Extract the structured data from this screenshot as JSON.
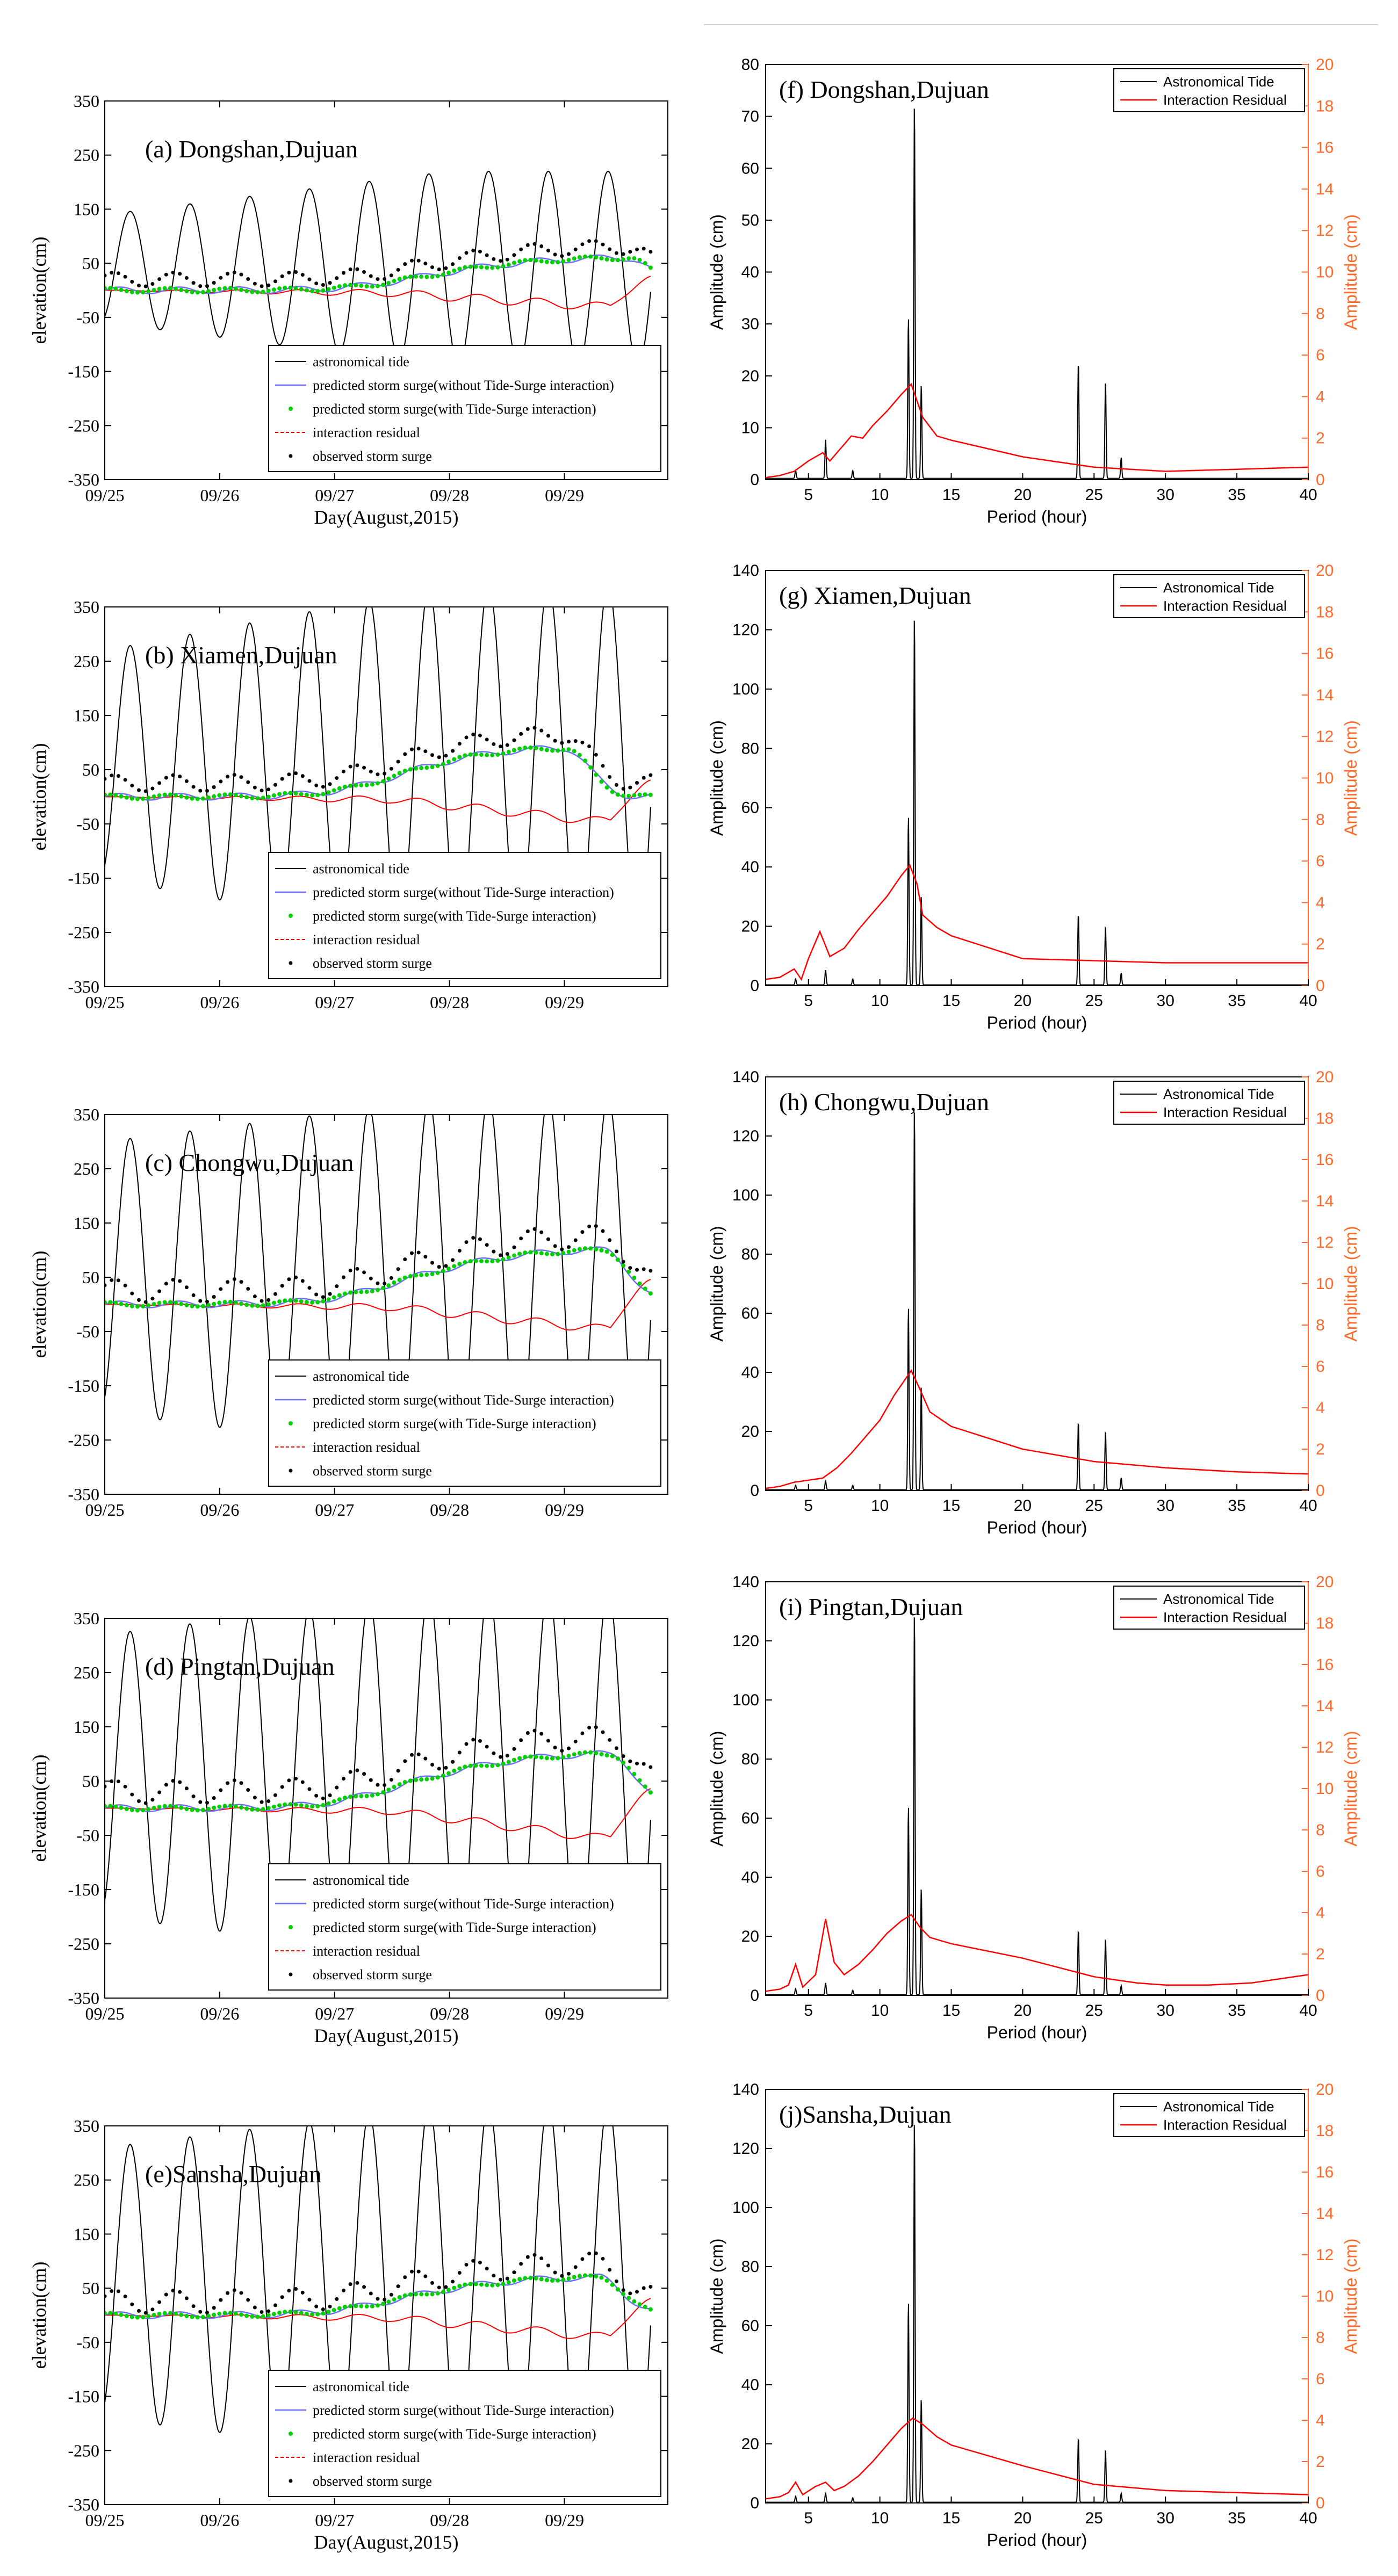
{
  "colors": {
    "tide": "#000000",
    "residual_line": "#ff0000",
    "right_axis": "#ff6a2a",
    "predicted_without": "#6f6fff",
    "predicted_with": "#00d000",
    "observed": "#000000",
    "top_rule": "#cccccc"
  },
  "chart_data": [
    {
      "panel": "a",
      "type": "line",
      "title": "(a) Dongshan,Dujuan",
      "xlabel": "Day(August,2015)",
      "ylabel": "elevation(cm)",
      "xticks": [
        "09/25",
        "09/26",
        "09/27",
        "09/28",
        "09/29"
      ],
      "xlim": [
        0,
        4.9
      ],
      "ylim": [
        -350,
        350
      ],
      "yticks": [
        -350,
        -250,
        -150,
        -50,
        50,
        150,
        250,
        350
      ],
      "legend": [
        "astronomical tide",
        "predicted storm surge(without Tide-Surge interaction)",
        "predicted storm surge(with Tide-Surge interaction)",
        "interaction residual",
        "observed storm surge"
      ],
      "tide": {
        "amp_start": 100,
        "amp_end": 180,
        "mean": 40,
        "period_days": 0.52,
        "phase_days": 0.22
      },
      "surge": {
        "base": 0,
        "rise_day": 2.5,
        "peak": 60,
        "peak_day": 4.55
      },
      "residual": {
        "min": -30,
        "end": 20
      },
      "observed": {
        "offset": 20,
        "wiggle": 10
      }
    },
    {
      "panel": "b",
      "type": "line",
      "title": "(b) Xiamen,Dujuan",
      "xlabel": "",
      "ylabel": "elevation(cm)",
      "xticks": [
        "09/25",
        "09/26",
        "09/27",
        "09/28",
        "09/29"
      ],
      "xlim": [
        0,
        4.9
      ],
      "ylim": [
        -350,
        350
      ],
      "yticks": [
        -350,
        -250,
        -150,
        -50,
        50,
        150,
        250,
        350
      ],
      "legend": [
        "astronomical tide",
        "predicted storm surge(without Tide-Surge interaction)",
        "predicted storm surge(with Tide-Surge interaction)",
        "interaction residual",
        "observed storm surge"
      ],
      "tide": {
        "amp_start": 210,
        "amp_end": 330,
        "mean": 60,
        "period_days": 0.52,
        "phase_days": 0.22
      },
      "surge": {
        "base": 0,
        "rise_day": 2.4,
        "peak": 90,
        "peak_day": 4.0
      },
      "residual": {
        "min": -45,
        "end": 25
      },
      "observed": {
        "offset": 25,
        "wiggle": 12
      }
    },
    {
      "panel": "c",
      "type": "line",
      "title": "(c) Chongwu,Dujuan",
      "xlabel": "",
      "ylabel": "elevation(cm)",
      "xticks": [
        "09/25",
        "09/26",
        "09/27",
        "09/28",
        "09/29"
      ],
      "xlim": [
        0,
        4.9
      ],
      "ylim": [
        -350,
        350
      ],
      "yticks": [
        -350,
        -250,
        -150,
        -50,
        50,
        150,
        250,
        350
      ],
      "legend": [
        "astronomical tide",
        "predicted storm surge(without Tide-Surge interaction)",
        "predicted storm surge(with Tide-Surge interaction)",
        "interaction residual",
        "observed storm surge"
      ],
      "tide": {
        "amp_start": 250,
        "amp_end": 330,
        "mean": 50,
        "period_days": 0.52,
        "phase_days": 0.22
      },
      "surge": {
        "base": 0,
        "rise_day": 2.3,
        "peak": 100,
        "peak_day": 4.35
      },
      "residual": {
        "min": -45,
        "end": 40
      },
      "observed": {
        "offset": 25,
        "wiggle": 18
      }
    },
    {
      "panel": "d",
      "type": "line",
      "title": "(d) Pingtan,Dujuan",
      "xlabel": "Day(August,2015)",
      "ylabel": "elevation(cm)",
      "xticks": [
        "09/25",
        "09/26",
        "09/27",
        "09/28",
        "09/29"
      ],
      "xlim": [
        0,
        4.9
      ],
      "ylim": [
        -350,
        350
      ],
      "yticks": [
        -350,
        -250,
        -150,
        -50,
        50,
        150,
        250,
        350
      ],
      "legend": [
        "astronomical tide",
        "predicted storm surge(without Tide-Surge interaction)",
        "predicted storm surge(with Tide-Surge interaction)",
        "interaction residual",
        "observed storm surge"
      ],
      "tide": {
        "amp_start": 260,
        "amp_end": 340,
        "mean": 60,
        "period_days": 0.52,
        "phase_days": 0.22
      },
      "surge": {
        "base": 0,
        "rise_day": 2.3,
        "peak": 100,
        "peak_day": 4.4
      },
      "residual": {
        "min": -55,
        "end": 30
      },
      "observed": {
        "offset": 30,
        "wiggle": 18
      }
    },
    {
      "panel": "e",
      "type": "line",
      "title": "(e)Sansha,Dujuan",
      "xlabel": "Day(August,2015)",
      "ylabel": "elevation(cm)",
      "xticks": [
        "09/25",
        "09/26",
        "09/27",
        "09/28",
        "09/29"
      ],
      "xlim": [
        0,
        4.9
      ],
      "ylim": [
        -350,
        350
      ],
      "yticks": [
        -350,
        -250,
        -150,
        -50,
        50,
        150,
        250,
        350
      ],
      "legend": [
        "astronomical tide",
        "predicted storm surge(without Tide-Surge interaction)",
        "predicted storm surge(with Tide-Surge interaction)",
        "interaction residual",
        "observed storm surge"
      ],
      "tide": {
        "amp_start": 250,
        "amp_end": 330,
        "mean": 60,
        "period_days": 0.52,
        "phase_days": 0.22
      },
      "surge": {
        "base": 0,
        "rise_day": 2.3,
        "peak": 70,
        "peak_day": 4.3
      },
      "residual": {
        "min": -40,
        "end": 25
      },
      "observed": {
        "offset": 25,
        "wiggle": 18
      }
    },
    {
      "panel": "f",
      "type": "line",
      "title": "(f) Dongshan,Dujuan",
      "xlabel": "Period (hour)",
      "ylabel_left": "Amplitude (cm)",
      "ylabel_right": "Amplitude (cm)",
      "xlim": [
        2,
        40
      ],
      "xticks": [
        5,
        10,
        15,
        20,
        25,
        30,
        35,
        40
      ],
      "ylim_left": [
        0,
        80
      ],
      "yticks_left": [
        0,
        10,
        20,
        30,
        40,
        50,
        60,
        70,
        80
      ],
      "ylim_right": [
        0,
        20
      ],
      "yticks_right": [
        0,
        2,
        4,
        6,
        8,
        10,
        12,
        14,
        16,
        18,
        20
      ],
      "legend": [
        "Astronomical Tide",
        "Interaction Residual"
      ],
      "tide_peaks": [
        [
          4.1,
          1.5
        ],
        [
          6.2,
          7.5
        ],
        [
          8.1,
          1.5
        ],
        [
          12.0,
          31
        ],
        [
          12.42,
          72.5
        ],
        [
          12.9,
          18
        ],
        [
          23.9,
          22.5
        ],
        [
          25.8,
          19
        ],
        [
          26.9,
          4
        ]
      ],
      "residual_curve": [
        [
          2,
          0.1
        ],
        [
          3,
          0.2
        ],
        [
          4,
          0.4
        ],
        [
          5,
          0.9
        ],
        [
          6,
          1.3
        ],
        [
          6.5,
          0.9
        ],
        [
          7,
          1.3
        ],
        [
          8,
          2.1
        ],
        [
          8.8,
          2.0
        ],
        [
          9.5,
          2.6
        ],
        [
          10.5,
          3.3
        ],
        [
          11.5,
          4.1
        ],
        [
          12.2,
          4.6
        ],
        [
          12.6,
          3.8
        ],
        [
          13,
          3.0
        ],
        [
          14,
          2.1
        ],
        [
          15,
          1.9
        ],
        [
          20,
          1.1
        ],
        [
          25,
          0.6
        ],
        [
          30,
          0.4
        ],
        [
          35,
          0.5
        ],
        [
          40,
          0.6
        ]
      ]
    },
    {
      "panel": "g",
      "type": "line",
      "title": "(g) Xiamen,Dujuan",
      "xlabel": "Period (hour)",
      "ylabel_left": "Amplitude (cm)",
      "ylabel_right": "Amplitude (cm)",
      "xlim": [
        2,
        40
      ],
      "xticks": [
        5,
        10,
        15,
        20,
        25,
        30,
        35,
        40
      ],
      "ylim_left": [
        0,
        140
      ],
      "yticks_left": [
        0,
        20,
        40,
        60,
        80,
        100,
        120,
        140
      ],
      "ylim_right": [
        0,
        20
      ],
      "yticks_right": [
        0,
        2,
        4,
        6,
        8,
        10,
        12,
        14,
        16,
        18,
        20
      ],
      "legend": [
        "Astronomical Tide",
        "Interaction Residual"
      ],
      "tide_peaks": [
        [
          4.1,
          2
        ],
        [
          6.2,
          5
        ],
        [
          8.1,
          2
        ],
        [
          12.0,
          57
        ],
        [
          12.42,
          125
        ],
        [
          12.9,
          30
        ],
        [
          23.9,
          24
        ],
        [
          25.8,
          20
        ],
        [
          26.9,
          4
        ]
      ],
      "residual_curve": [
        [
          2,
          0.3
        ],
        [
          3,
          0.4
        ],
        [
          4,
          0.8
        ],
        [
          4.5,
          0.3
        ],
        [
          5,
          1.3
        ],
        [
          5.8,
          2.6
        ],
        [
          6.5,
          1.4
        ],
        [
          7.5,
          1.8
        ],
        [
          8.5,
          2.7
        ],
        [
          9.5,
          3.5
        ],
        [
          10.5,
          4.3
        ],
        [
          11.5,
          5.3
        ],
        [
          12.1,
          5.8
        ],
        [
          12.6,
          4.9
        ],
        [
          13,
          3.4
        ],
        [
          14,
          2.8
        ],
        [
          15,
          2.4
        ],
        [
          20,
          1.3
        ],
        [
          25,
          1.2
        ],
        [
          30,
          1.1
        ],
        [
          35,
          1.1
        ],
        [
          40,
          1.1
        ]
      ]
    },
    {
      "panel": "h",
      "type": "line",
      "title": "(h) Chongwu,Dujuan",
      "xlabel": "Period (hour)",
      "ylabel_left": "Amplitude (cm)",
      "ylabel_right": "Amplitude (cm)",
      "xlim": [
        2,
        40
      ],
      "xticks": [
        5,
        10,
        15,
        20,
        25,
        30,
        35,
        40
      ],
      "ylim_left": [
        0,
        140
      ],
      "yticks_left": [
        0,
        20,
        40,
        60,
        80,
        100,
        120,
        140
      ],
      "ylim_right": [
        0,
        20
      ],
      "yticks_right": [
        0,
        2,
        4,
        6,
        8,
        10,
        12,
        14,
        16,
        18,
        20
      ],
      "legend": [
        "Astronomical Tide",
        "Interaction Residual"
      ],
      "tide_peaks": [
        [
          4.1,
          1.5
        ],
        [
          6.2,
          3
        ],
        [
          8.1,
          1.5
        ],
        [
          12.0,
          62
        ],
        [
          12.42,
          130
        ],
        [
          12.9,
          35
        ],
        [
          23.9,
          23
        ],
        [
          25.8,
          20
        ],
        [
          26.9,
          4
        ]
      ],
      "residual_curve": [
        [
          2,
          0.1
        ],
        [
          3,
          0.2
        ],
        [
          4,
          0.4
        ],
        [
          5,
          0.5
        ],
        [
          6,
          0.6
        ],
        [
          7,
          1.1
        ],
        [
          8,
          1.8
        ],
        [
          9,
          2.6
        ],
        [
          10,
          3.4
        ],
        [
          11,
          4.6
        ],
        [
          12.2,
          5.8
        ],
        [
          12.8,
          4.9
        ],
        [
          13.5,
          3.8
        ],
        [
          15,
          3.1
        ],
        [
          20,
          2.0
        ],
        [
          25,
          1.4
        ],
        [
          30,
          1.1
        ],
        [
          35,
          0.9
        ],
        [
          40,
          0.8
        ]
      ]
    },
    {
      "panel": "i",
      "type": "line",
      "title": "(i) Pingtan,Dujuan",
      "xlabel": "Period (hour)",
      "ylabel_left": "Amplitude (cm)",
      "ylabel_right": "Amplitude (cm)",
      "xlim": [
        2,
        40
      ],
      "xticks": [
        5,
        10,
        15,
        20,
        25,
        30,
        35,
        40
      ],
      "ylim_left": [
        0,
        140
      ],
      "yticks_left": [
        0,
        20,
        40,
        60,
        80,
        100,
        120,
        140
      ],
      "ylim_right": [
        0,
        20
      ],
      "yticks_right": [
        0,
        2,
        4,
        6,
        8,
        10,
        12,
        14,
        16,
        18,
        20
      ],
      "legend": [
        "Astronomical Tide",
        "Interaction Residual"
      ],
      "tide_peaks": [
        [
          4.1,
          2
        ],
        [
          6.2,
          4
        ],
        [
          8.1,
          1.5
        ],
        [
          12.0,
          64
        ],
        [
          12.42,
          130
        ],
        [
          12.9,
          36
        ],
        [
          23.9,
          22
        ],
        [
          25.8,
          19
        ],
        [
          26.9,
          3
        ]
      ],
      "residual_curve": [
        [
          2,
          0.2
        ],
        [
          3,
          0.3
        ],
        [
          3.6,
          0.5
        ],
        [
          4.1,
          1.5
        ],
        [
          4.6,
          0.4
        ],
        [
          5.5,
          1.0
        ],
        [
          6.2,
          3.7
        ],
        [
          6.8,
          1.6
        ],
        [
          7.5,
          1.0
        ],
        [
          8.5,
          1.5
        ],
        [
          9.5,
          2.2
        ],
        [
          10.5,
          3.0
        ],
        [
          11.5,
          3.6
        ],
        [
          12.2,
          3.9
        ],
        [
          12.8,
          3.3
        ],
        [
          13.5,
          2.8
        ],
        [
          15,
          2.5
        ],
        [
          20,
          1.8
        ],
        [
          25,
          0.9
        ],
        [
          28,
          0.6
        ],
        [
          30,
          0.5
        ],
        [
          33,
          0.5
        ],
        [
          36,
          0.6
        ],
        [
          40,
          1.0
        ]
      ]
    },
    {
      "panel": "j",
      "type": "line",
      "title": "(j)Sansha,Dujuan",
      "xlabel": "Period (hour)",
      "ylabel_left": "Amplitude (cm)",
      "ylabel_right": "Amplitude (cm)",
      "xlim": [
        2,
        40
      ],
      "xticks": [
        5,
        10,
        15,
        20,
        25,
        30,
        35,
        40
      ],
      "ylim_left": [
        0,
        140
      ],
      "yticks_left": [
        0,
        20,
        40,
        60,
        80,
        100,
        120,
        140
      ],
      "ylim_right": [
        0,
        20
      ],
      "yticks_right": [
        0,
        2,
        4,
        6,
        8,
        10,
        12,
        14,
        16,
        18,
        20
      ],
      "legend": [
        "Astronomical Tide",
        "Interaction Residual"
      ],
      "tide_peaks": [
        [
          4.1,
          2
        ],
        [
          6.2,
          3
        ],
        [
          8.1,
          1.5
        ],
        [
          12.0,
          68
        ],
        [
          12.42,
          130
        ],
        [
          12.9,
          35
        ],
        [
          23.9,
          22
        ],
        [
          25.8,
          18
        ],
        [
          26.9,
          3
        ]
      ],
      "residual_curve": [
        [
          2,
          0.2
        ],
        [
          3,
          0.3
        ],
        [
          3.6,
          0.5
        ],
        [
          4.1,
          1.0
        ],
        [
          4.6,
          0.4
        ],
        [
          5.5,
          0.8
        ],
        [
          6.2,
          1.0
        ],
        [
          6.8,
          0.6
        ],
        [
          7.5,
          0.8
        ],
        [
          8.5,
          1.3
        ],
        [
          9.5,
          2.0
        ],
        [
          10.5,
          2.8
        ],
        [
          11.5,
          3.6
        ],
        [
          12.3,
          4.1
        ],
        [
          13,
          3.8
        ],
        [
          14,
          3.2
        ],
        [
          15,
          2.8
        ],
        [
          20,
          1.8
        ],
        [
          25,
          0.9
        ],
        [
          30,
          0.6
        ],
        [
          35,
          0.5
        ],
        [
          40,
          0.4
        ]
      ]
    }
  ]
}
